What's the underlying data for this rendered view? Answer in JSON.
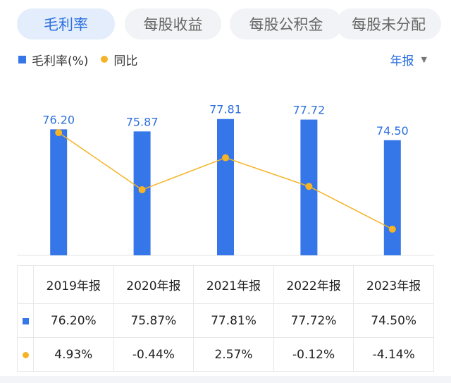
{
  "tabs": [
    {
      "label": "毛利率",
      "active": true
    },
    {
      "label": "每股收益",
      "active": false
    },
    {
      "label": "每股公积金",
      "active": false
    },
    {
      "label": "每股未分配",
      "active": false
    }
  ],
  "legend": {
    "bar_label": "毛利率(%)",
    "line_label": "同比"
  },
  "period": {
    "label": "年报",
    "caret": "▼"
  },
  "colors": {
    "bar": "#3576e8",
    "line": "#f5b325",
    "accent": "#2c6fde",
    "up": "#e23d3d",
    "down": "#1e9e55"
  },
  "chart_data": {
    "type": "bar",
    "categories": [
      "2019年报",
      "2020年报",
      "2021年报",
      "2022年报",
      "2023年报"
    ],
    "series": [
      {
        "name": "毛利率(%)",
        "type": "bar",
        "values": [
          76.2,
          75.87,
          77.81,
          77.72,
          74.5
        ],
        "labels": [
          "76.20",
          "75.87",
          "77.81",
          "77.72",
          "74.50"
        ]
      },
      {
        "name": "同比",
        "type": "line",
        "values": [
          4.93,
          -0.44,
          2.57,
          -0.12,
          -4.14
        ]
      }
    ],
    "grid": false
  },
  "table": {
    "headers": [
      "2019年报",
      "2020年报",
      "2021年报",
      "2022年报",
      "2023年报"
    ],
    "rows": [
      {
        "marker": "bar-square",
        "cells": [
          {
            "text": "76.20%",
            "tone": "neutral"
          },
          {
            "text": "75.87%",
            "tone": "neutral"
          },
          {
            "text": "77.81%",
            "tone": "neutral"
          },
          {
            "text": "77.72%",
            "tone": "neutral"
          },
          {
            "text": "74.50%",
            "tone": "neutral"
          }
        ]
      },
      {
        "marker": "line-dot",
        "cells": [
          {
            "text": "4.93%",
            "tone": "pos"
          },
          {
            "text": "-0.44%",
            "tone": "neg"
          },
          {
            "text": "2.57%",
            "tone": "pos"
          },
          {
            "text": "-0.12%",
            "tone": "neg"
          },
          {
            "text": "-4.14%",
            "tone": "neg"
          }
        ]
      }
    ]
  }
}
